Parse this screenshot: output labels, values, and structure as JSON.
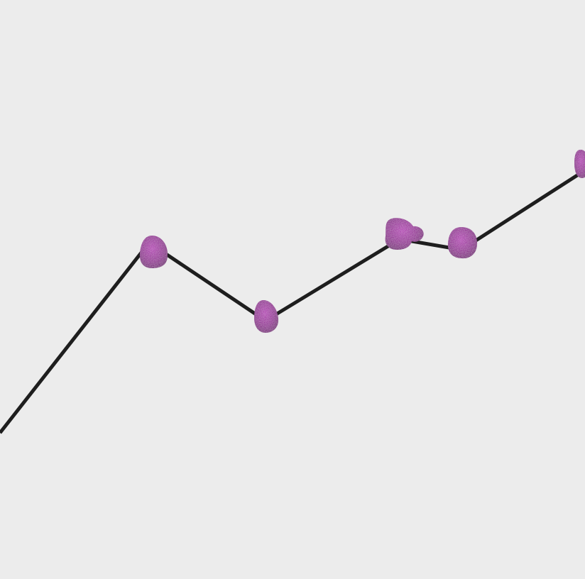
{
  "colors": {
    "background": "#ececec",
    "line": "#1e1e1e",
    "node_fill": "#8e1f8f",
    "node_highlight": "#b23db3",
    "node_shadow": "#6c116e"
  },
  "diagram": {
    "kind": "polyline",
    "marker_shape": "blob",
    "segments": 6,
    "nodes": 6
  }
}
